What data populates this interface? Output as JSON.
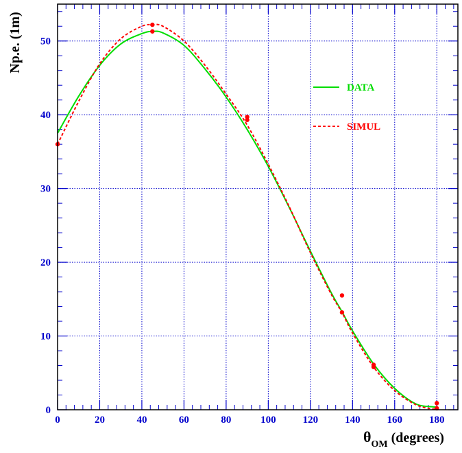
{
  "chart_data": {
    "type": "line",
    "xlabel": "θOM (degrees)",
    "xlabel_main": "θ",
    "xlabel_sub": "OM",
    "xlabel_rest": " (degrees)",
    "ylabel": "Np.e. (1m)",
    "xlim": [
      0,
      190
    ],
    "ylim": [
      0,
      55
    ],
    "x_ticks": [
      0,
      20,
      40,
      60,
      80,
      100,
      120,
      140,
      160,
      180
    ],
    "y_ticks": [
      0,
      10,
      20,
      30,
      40,
      50
    ],
    "grid": true,
    "legend_position": "top-right",
    "series": [
      {
        "name": "DATA",
        "style": "solid",
        "color": "#00dd00",
        "x": [
          0,
          10,
          20,
          30,
          40,
          45,
          50,
          60,
          70,
          80,
          90,
          100,
          110,
          120,
          130,
          135,
          140,
          150,
          160,
          170,
          178,
          180
        ],
        "y": [
          37.5,
          42.5,
          46.7,
          49.6,
          51.0,
          51.3,
          51.1,
          49.4,
          46.2,
          42.4,
          38.0,
          33.0,
          27.4,
          21.5,
          15.8,
          13.3,
          10.7,
          6.2,
          2.9,
          0.8,
          0.4,
          0.4
        ]
      },
      {
        "name": "SIMUL",
        "style": "dashed",
        "color": "#ff0000",
        "x": [
          0,
          10,
          20,
          30,
          40,
          45,
          50,
          60,
          70,
          80,
          90,
          100,
          110,
          120,
          130,
          135,
          140,
          150,
          160,
          170,
          178,
          180
        ],
        "y": [
          36.0,
          41.8,
          46.9,
          50.3,
          52.0,
          52.2,
          52.0,
          50.0,
          46.7,
          42.8,
          38.6,
          33.3,
          27.5,
          21.3,
          15.6,
          13.2,
          10.4,
          5.8,
          2.6,
          0.7,
          0.1,
          0.2
        ]
      }
    ],
    "markers": {
      "color": "#ff0000",
      "points": [
        [
          0,
          36.0
        ],
        [
          45,
          52.2
        ],
        [
          45,
          51.3
        ],
        [
          90,
          39.7
        ],
        [
          90,
          39.3
        ],
        [
          135,
          15.5
        ],
        [
          135,
          13.2
        ],
        [
          150,
          6.1
        ],
        [
          150,
          5.8
        ],
        [
          180,
          0.9
        ],
        [
          180,
          0.2
        ]
      ]
    }
  },
  "colors": {
    "frame": "#000000",
    "grid": "#0000cc",
    "ticks": "#0000cc"
  }
}
